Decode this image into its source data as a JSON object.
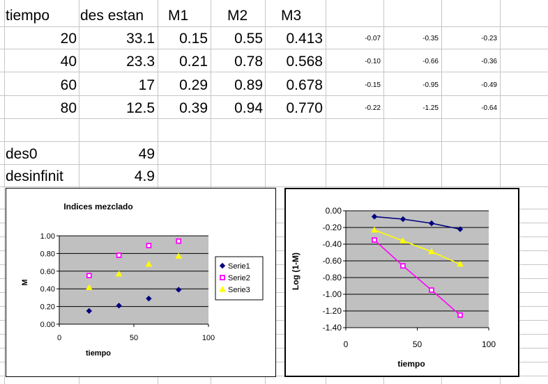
{
  "table": {
    "headers": [
      "tiempo",
      "des estan",
      "M1",
      "M2",
      "M3"
    ],
    "rows": [
      {
        "tiempo": "20",
        "des": "33.1",
        "m1": "0.15",
        "m2": "0.55",
        "m3": "0.413",
        "l1": "-0.07",
        "l2": "-0.35",
        "l3": "-0.23"
      },
      {
        "tiempo": "40",
        "des": "23.3",
        "m1": "0.21",
        "m2": "0.78",
        "m3": "0.568",
        "l1": "-0.10",
        "l2": "-0.66",
        "l3": "-0.36"
      },
      {
        "tiempo": "60",
        "des": "17",
        "m1": "0.29",
        "m2": "0.89",
        "m3": "0.678",
        "l1": "-0.15",
        "l2": "-0.95",
        "l3": "-0.49"
      },
      {
        "tiempo": "80",
        "des": "12.5",
        "m1": "0.39",
        "m2": "0.94",
        "m3": "0.770",
        "l1": "-0.22",
        "l2": "-1.25",
        "l3": "-0.64"
      }
    ],
    "des0_label": "des0",
    "des0_value": "49",
    "desinf_label": "desinfinit",
    "desinf_value": "4.9"
  },
  "chart_data": [
    {
      "type": "scatter",
      "title": "Indices mezclado",
      "xlabel": "tiempo",
      "ylabel": "M",
      "xlim": [
        0,
        100
      ],
      "ylim": [
        0,
        1
      ],
      "xticks": [
        "0",
        "50",
        "100"
      ],
      "yticks": [
        "0.00",
        "0.20",
        "0.40",
        "0.60",
        "0.80",
        "1.00"
      ],
      "grid": true,
      "legend": "right",
      "x": [
        20,
        40,
        60,
        80
      ],
      "series": [
        {
          "name": "Serie1",
          "values": [
            0.15,
            0.21,
            0.29,
            0.39
          ],
          "color": "#000080",
          "marker": "diamond"
        },
        {
          "name": "Serie2",
          "values": [
            0.55,
            0.78,
            0.89,
            0.94
          ],
          "color": "#ff00ff",
          "marker": "square"
        },
        {
          "name": "Serie3",
          "values": [
            0.413,
            0.568,
            0.678,
            0.77
          ],
          "color": "#ffff00",
          "marker": "triangle"
        }
      ],
      "plot_background": "#c0c0c0"
    },
    {
      "type": "line",
      "title": "",
      "xlabel": "tiempo",
      "ylabel": "Log (1-M)",
      "xlim": [
        0,
        100
      ],
      "ylim": [
        -1.4,
        0
      ],
      "xticks": [
        "0",
        "50",
        "100"
      ],
      "yticks": [
        "0.00",
        "-0.20",
        "-0.40",
        "-0.60",
        "-0.80",
        "-1.00",
        "-1.20",
        "-1.40"
      ],
      "grid": true,
      "x": [
        20,
        40,
        60,
        80
      ],
      "series": [
        {
          "values": [
            -0.07,
            -0.1,
            -0.15,
            -0.22
          ],
          "color": "#000080",
          "marker": "diamond"
        },
        {
          "values": [
            -0.35,
            -0.66,
            -0.95,
            -1.25
          ],
          "color": "#ff00ff",
          "marker": "square"
        },
        {
          "values": [
            -0.23,
            -0.36,
            -0.49,
            -0.64
          ],
          "color": "#ffff00",
          "marker": "triangle"
        }
      ],
      "plot_background": "#c0c0c0"
    }
  ]
}
